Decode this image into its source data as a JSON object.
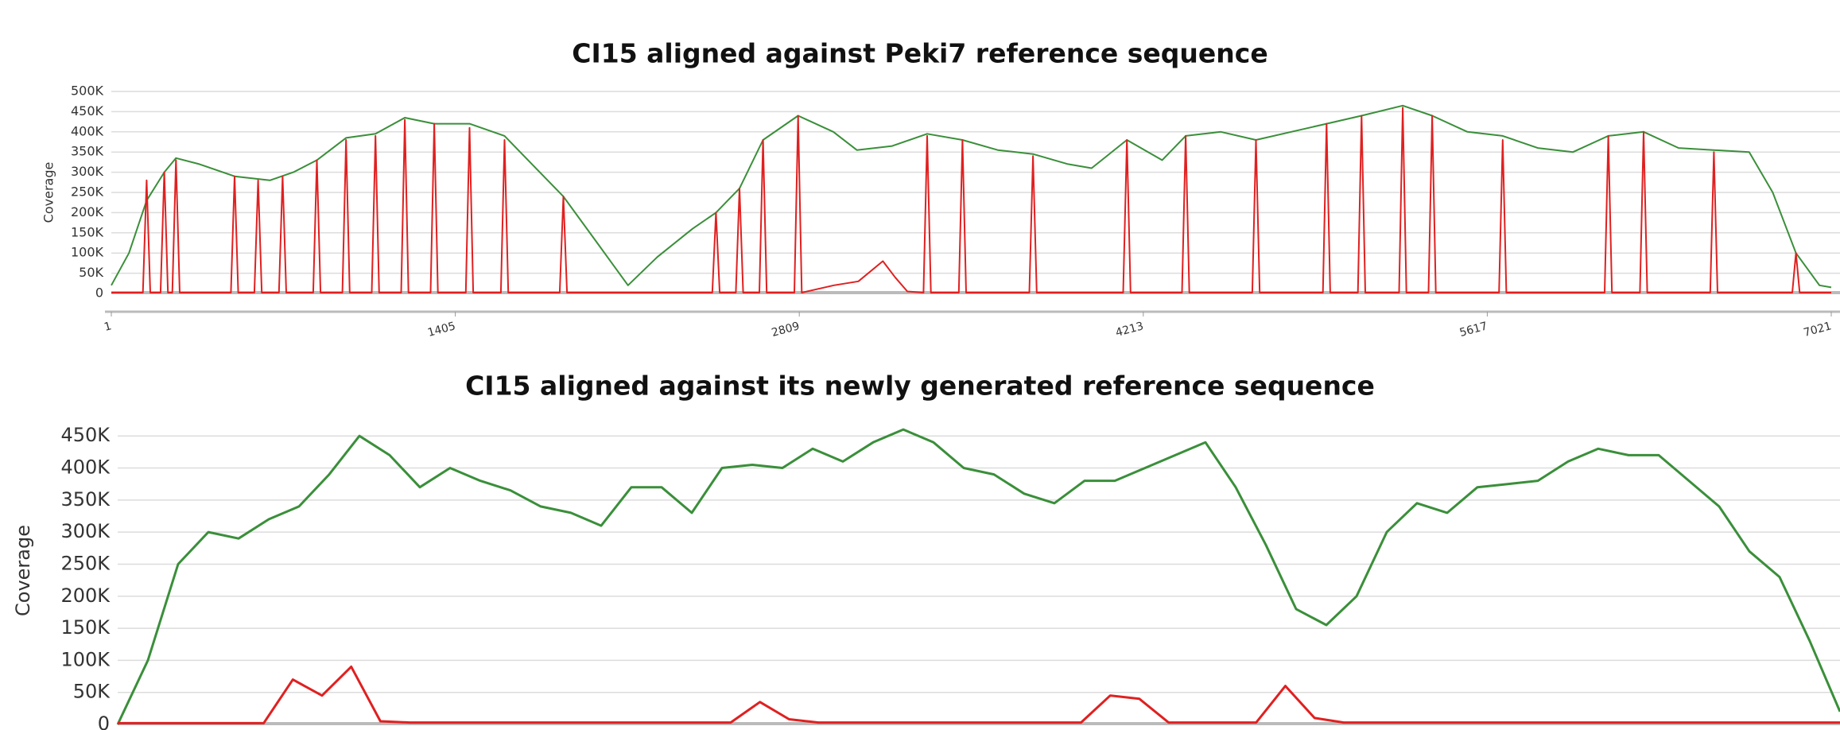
{
  "chart_data": [
    {
      "type": "line",
      "title": "CI15 aligned against Peki7 reference sequence",
      "y_label": "Coverage",
      "xlim": [
        1,
        7021
      ],
      "xticks": [
        1,
        1405,
        2809,
        4213,
        5617,
        7021
      ],
      "ylim": [
        0,
        500000
      ],
      "yticks": [
        0,
        {
          "value": 50000,
          "label": "50K"
        },
        {
          "value": 100000,
          "label": "100K"
        },
        {
          "value": 150000,
          "label": "150K"
        },
        {
          "value": 200000,
          "label": "200K"
        },
        {
          "value": 250000,
          "label": "250K"
        },
        {
          "value": 300000,
          "label": "300K"
        },
        {
          "value": 350000,
          "label": "350K"
        },
        {
          "value": 400000,
          "label": "400K"
        },
        {
          "value": 450000,
          "label": "450K"
        },
        {
          "value": 500000,
          "label": "500K"
        }
      ],
      "grid": true,
      "series": [
        {
          "color": "#3a8f3a",
          "x": [
            1,
            73,
            145,
            217,
            265,
            360,
            504,
            648,
            744,
            840,
            959,
            1079,
            1199,
            1319,
            1463,
            1606,
            1702,
            1846,
            1990,
            2110,
            2229,
            2373,
            2469,
            2565,
            2661,
            2804,
            2948,
            3044,
            3188,
            3331,
            3475,
            3619,
            3763,
            3906,
            4002,
            4146,
            4290,
            4386,
            4529,
            4673,
            4817,
            4961,
            5104,
            5272,
            5392,
            5536,
            5680,
            5823,
            5967,
            6111,
            6255,
            6398,
            6542,
            6686,
            6782,
            6877,
            6973,
            7021
          ],
          "values": [
            20000,
            100000,
            230000,
            300000,
            335000,
            320000,
            290000,
            280000,
            300000,
            330000,
            385000,
            395000,
            435000,
            420000,
            420000,
            390000,
            330000,
            240000,
            120000,
            20000,
            90000,
            160000,
            200000,
            260000,
            380000,
            440000,
            400000,
            355000,
            365000,
            395000,
            380000,
            355000,
            345000,
            320000,
            310000,
            380000,
            330000,
            390000,
            400000,
            380000,
            400000,
            420000,
            440000,
            465000,
            440000,
            400000,
            390000,
            360000,
            350000,
            390000,
            400000,
            360000,
            355000,
            350000,
            250000,
            100000,
            20000,
            15000
          ]
        },
        {
          "color": "#e02020",
          "x": [
            1,
            130,
            145,
            160,
            202,
            217,
            232,
            250,
            265,
            280,
            489,
            504,
            519,
            585,
            600,
            615,
            685,
            700,
            715,
            825,
            840,
            855,
            944,
            959,
            974,
            1064,
            1079,
            1094,
            1184,
            1199,
            1214,
            1304,
            1319,
            1334,
            1448,
            1463,
            1478,
            1591,
            1606,
            1621,
            1831,
            1846,
            1861,
            2454,
            2469,
            2484,
            2550,
            2565,
            2580,
            2646,
            2661,
            2676,
            2789,
            2804,
            2819,
            2950,
            3050,
            3150,
            3200,
            3250,
            3316,
            3331,
            3346,
            3460,
            3475,
            3490,
            3748,
            3763,
            3778,
            4131,
            4146,
            4161,
            4371,
            4386,
            4401,
            4658,
            4673,
            4688,
            4946,
            4961,
            4976,
            5089,
            5104,
            5119,
            5257,
            5272,
            5287,
            5377,
            5392,
            5407,
            5665,
            5680,
            5695,
            6096,
            6111,
            6126,
            6240,
            6255,
            6270,
            6527,
            6542,
            6557,
            6862,
            6877,
            6892,
            7021
          ],
          "values": [
            2000,
            2000,
            280000,
            2000,
            2000,
            300000,
            2000,
            2000,
            330000,
            2000,
            2000,
            290000,
            2000,
            2000,
            280000,
            2000,
            2000,
            290000,
            2000,
            2000,
            330000,
            2000,
            2000,
            380000,
            2000,
            2000,
            390000,
            2000,
            2000,
            430000,
            2000,
            2000,
            420000,
            2000,
            2000,
            410000,
            2000,
            2000,
            380000,
            2000,
            2000,
            240000,
            2000,
            2000,
            200000,
            2000,
            2000,
            260000,
            2000,
            2000,
            380000,
            2000,
            2000,
            440000,
            2000,
            20000,
            30000,
            80000,
            40000,
            5000,
            2000,
            390000,
            2000,
            2000,
            380000,
            2000,
            2000,
            340000,
            2000,
            2000,
            380000,
            2000,
            2000,
            390000,
            2000,
            2000,
            380000,
            2000,
            2000,
            420000,
            2000,
            2000,
            440000,
            2000,
            2000,
            460000,
            2000,
            2000,
            440000,
            2000,
            2000,
            380000,
            2000,
            2000,
            390000,
            2000,
            2000,
            400000,
            2000,
            2000,
            350000,
            2000,
            2000,
            100000,
            2000,
            2000
          ]
        }
      ]
    },
    {
      "type": "line",
      "title": "CI15 aligned against its newly generated reference sequence",
      "y_label": "Coverage",
      "ylim": [
        0,
        480000
      ],
      "yticks": [
        0,
        {
          "value": 50000,
          "label": "50K"
        },
        {
          "value": 100000,
          "label": "100K"
        },
        {
          "value": 150000,
          "label": "150K"
        },
        {
          "value": 200000,
          "label": "200K"
        },
        {
          "value": 250000,
          "label": "250K"
        },
        {
          "value": 300000,
          "label": "300K"
        },
        {
          "value": 350000,
          "label": "350K"
        },
        {
          "value": 400000,
          "label": "400K"
        },
        {
          "value": 450000,
          "label": "450K"
        }
      ],
      "grid": true,
      "series": [
        {
          "color": "#3a8f3a",
          "values": [
            0,
            100000,
            250000,
            300000,
            290000,
            320000,
            340000,
            390000,
            450000,
            420000,
            370000,
            400000,
            380000,
            365000,
            340000,
            330000,
            310000,
            370000,
            370000,
            330000,
            400000,
            405000,
            400000,
            430000,
            410000,
            440000,
            460000,
            440000,
            400000,
            390000,
            360000,
            345000,
            380000,
            380000,
            400000,
            420000,
            440000,
            370000,
            280000,
            180000,
            155000,
            200000,
            300000,
            345000,
            330000,
            370000,
            375000,
            380000,
            410000,
            430000,
            420000,
            420000,
            380000,
            340000,
            270000,
            230000,
            130000,
            20000
          ]
        },
        {
          "color": "#e02020",
          "values": [
            2000,
            2000,
            2000,
            2000,
            2000,
            2000,
            70000,
            45000,
            90000,
            5000,
            3000,
            3000,
            3000,
            3000,
            3000,
            3000,
            3000,
            3000,
            3000,
            3000,
            3000,
            3000,
            35000,
            8000,
            3000,
            3000,
            3000,
            3000,
            3000,
            3000,
            3000,
            3000,
            3000,
            3000,
            45000,
            40000,
            3000,
            3000,
            3000,
            3000,
            60000,
            10000,
            3000,
            3000,
            3000,
            3000,
            3000,
            3000,
            3000,
            3000,
            3000,
            3000,
            3000,
            3000,
            3000,
            3000,
            3000,
            3000,
            3000,
            3000
          ]
        }
      ]
    }
  ]
}
